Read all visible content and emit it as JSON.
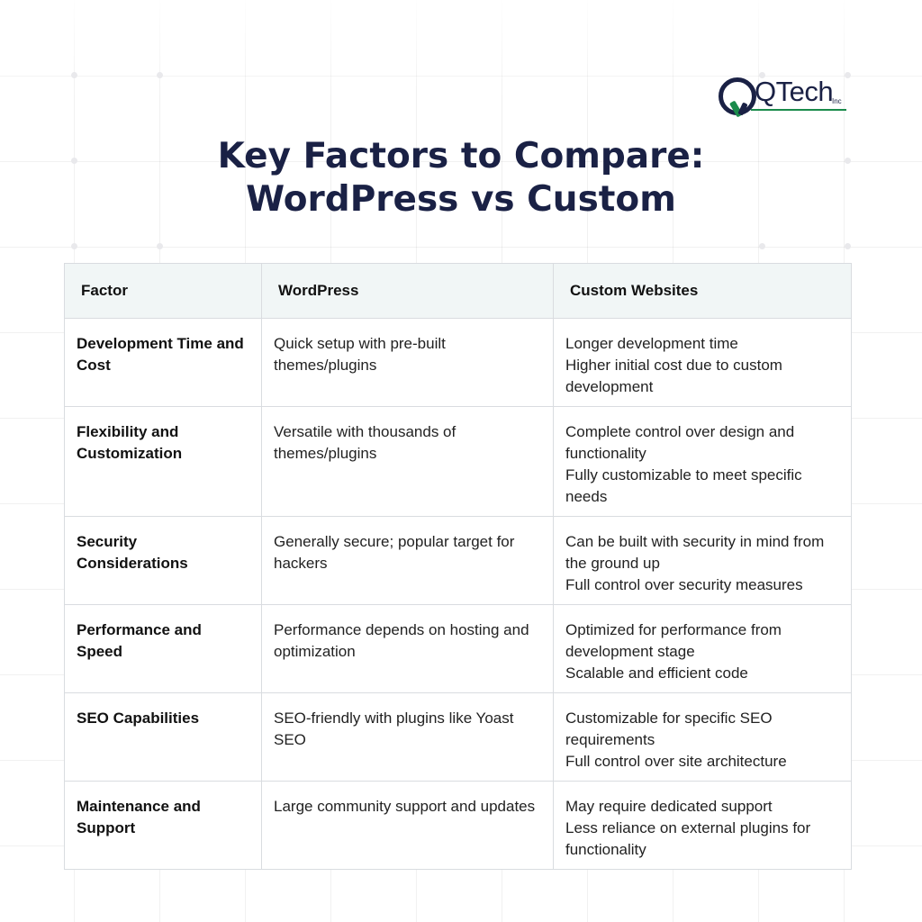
{
  "brand": {
    "name": "QTech",
    "suffix": "Inc"
  },
  "title": {
    "line1": "Key Factors to Compare:",
    "line2": "WordPress vs Custom"
  },
  "table": {
    "headers": [
      "Factor",
      "WordPress",
      "Custom Websites"
    ],
    "rows": [
      {
        "factor": "Development Time and Cost",
        "wordpress": "Quick setup with pre-built themes/plugins",
        "custom": [
          "Longer development time",
          "Higher initial cost due to custom development"
        ]
      },
      {
        "factor": "Flexibility and Customization",
        "wordpress": "Versatile with thousands of themes/plugins",
        "custom": [
          "Complete control over design and functionality",
          "Fully customizable to meet specific needs"
        ]
      },
      {
        "factor": "Security Considerations",
        "wordpress": "Generally secure; popular target for hackers",
        "custom": [
          "Can be built with security in mind from the ground up",
          "Full control over security measures"
        ]
      },
      {
        "factor": "Performance and Speed",
        "wordpress": "Performance depends on hosting and optimization",
        "custom": [
          "Optimized for performance from development stage",
          "Scalable and efficient code"
        ]
      },
      {
        "factor": "SEO Capabilities",
        "wordpress": "SEO-friendly with plugins like Yoast SEO",
        "custom": [
          "Customizable for specific SEO requirements",
          "Full control over site architecture"
        ]
      },
      {
        "factor": "Maintenance and Support",
        "wordpress": "Large community support and updates",
        "custom": [
          "May require dedicated support",
          "Less reliance on external plugins for functionality"
        ]
      }
    ]
  },
  "colors": {
    "navy": "#1a2145",
    "green": "#1a8a4b",
    "header_bg": "#f1f6f6",
    "border": "#d9dce0"
  }
}
